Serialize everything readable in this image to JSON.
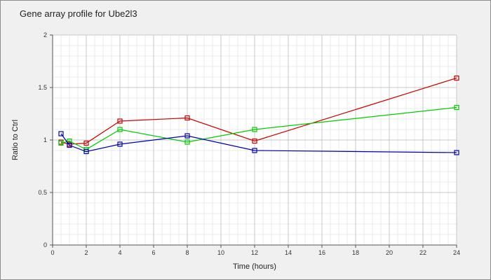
{
  "chart_data": {
    "type": "line",
    "title": "Gene array profile for Ube2l3",
    "xlabel": "Time (hours)",
    "ylabel": "Ratio to Ctrl",
    "xlim": [
      0,
      24
    ],
    "ylim": [
      0,
      2
    ],
    "x_ticks": [
      "0",
      "2",
      "4",
      "6",
      "8",
      "10",
      "12",
      "14",
      "16",
      "18",
      "20",
      "22",
      "24"
    ],
    "y_ticks": [
      "0",
      "0.5",
      "1",
      "1.5",
      "2"
    ],
    "grid": true,
    "series": [
      {
        "color": "#cc0000",
        "x": [
          0.5,
          1,
          2,
          4,
          8,
          12,
          24
        ],
        "values": [
          0.98,
          0.96,
          0.97,
          1.18,
          1.21,
          0.99,
          1.59
        ]
      },
      {
        "color": "#00cc00",
        "x": [
          0.5,
          1,
          2,
          4,
          8,
          12,
          24
        ],
        "values": [
          0.97,
          0.99,
          0.91,
          1.1,
          0.98,
          1.1,
          1.31
        ]
      },
      {
        "color": "#0000aa",
        "x": [
          0.5,
          1,
          2,
          4,
          8,
          12,
          24
        ],
        "values": [
          1.06,
          0.95,
          0.89,
          0.96,
          1.04,
          0.9,
          0.88
        ]
      }
    ]
  }
}
